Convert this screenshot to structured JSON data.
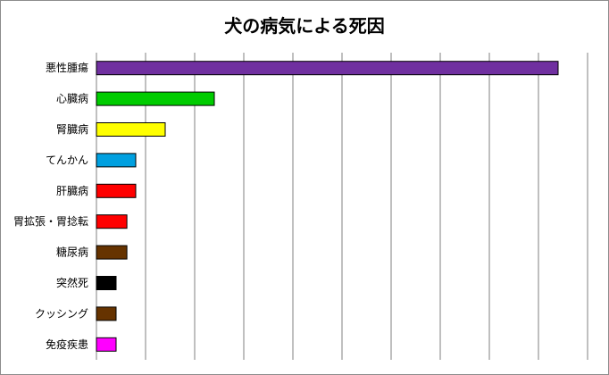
{
  "chart_data": {
    "type": "bar",
    "orientation": "horizontal",
    "title": "犬の病気による死因",
    "xlabel": "",
    "ylabel": "",
    "categories": [
      "悪性腫瘍",
      "心臓病",
      "腎臓病",
      "てんかん",
      "肝臓病",
      "胃拡張・胃捻転",
      "糖尿病",
      "突然死",
      "クッシング",
      "免疫疾患"
    ],
    "values": [
      47.0,
      12.0,
      7.0,
      4.0,
      4.0,
      3.1,
      3.1,
      2.0,
      2.0,
      2.0
    ],
    "colors": [
      "#7030a0",
      "#00cc00",
      "#ffff00",
      "#00a0e0",
      "#ff0000",
      "#ff0000",
      "#663300",
      "#000000",
      "#663300",
      "#ff00ff"
    ],
    "xlim": [
      0,
      51
    ],
    "grid": "vertical",
    "legend": "none"
  }
}
